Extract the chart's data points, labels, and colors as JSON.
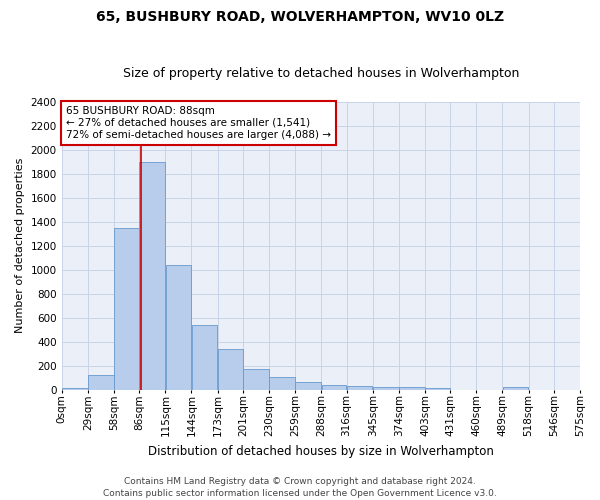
{
  "title1": "65, BUSHBURY ROAD, WOLVERHAMPTON, WV10 0LZ",
  "title2": "Size of property relative to detached houses in Wolverhampton",
  "xlabel": "Distribution of detached houses by size in Wolverhampton",
  "ylabel": "Number of detached properties",
  "footer1": "Contains HM Land Registry data © Crown copyright and database right 2024.",
  "footer2": "Contains public sector information licensed under the Open Government Licence v3.0.",
  "annotation_title": "65 BUSHBURY ROAD: 88sqm",
  "annotation_line1": "← 27% of detached houses are smaller (1,541)",
  "annotation_line2": "72% of semi-detached houses are larger (4,088) →",
  "property_size": 88,
  "bin_edges": [
    0,
    29,
    58,
    86,
    115,
    144,
    173,
    201,
    230,
    259,
    288,
    316,
    345,
    374,
    403,
    431,
    460,
    489,
    518,
    546,
    575
  ],
  "bin_labels": [
    "0sqm",
    "29sqm",
    "58sqm",
    "86sqm",
    "115sqm",
    "144sqm",
    "173sqm",
    "201sqm",
    "230sqm",
    "259sqm",
    "288sqm",
    "316sqm",
    "345sqm",
    "374sqm",
    "403sqm",
    "431sqm",
    "460sqm",
    "489sqm",
    "518sqm",
    "546sqm",
    "575sqm"
  ],
  "values": [
    15,
    125,
    1350,
    1900,
    1040,
    540,
    340,
    170,
    110,
    65,
    40,
    30,
    25,
    20,
    15,
    0,
    0,
    20,
    0,
    0,
    15
  ],
  "bar_color": "#b8cceb",
  "bar_edge_color": "#6699cc",
  "vline_color": "#cc0000",
  "vline_x": 88,
  "annotation_box_color": "#cc0000",
  "ylim": [
    0,
    2400
  ],
  "yticks": [
    0,
    200,
    400,
    600,
    800,
    1000,
    1200,
    1400,
    1600,
    1800,
    2000,
    2200,
    2400
  ],
  "grid_color": "#c8d4e8",
  "background_color": "#eaeff8",
  "title1_fontsize": 10,
  "title2_fontsize": 9,
  "xlabel_fontsize": 8.5,
  "ylabel_fontsize": 8,
  "tick_fontsize": 7.5,
  "annotation_fontsize": 7.5,
  "footer_fontsize": 6.5
}
